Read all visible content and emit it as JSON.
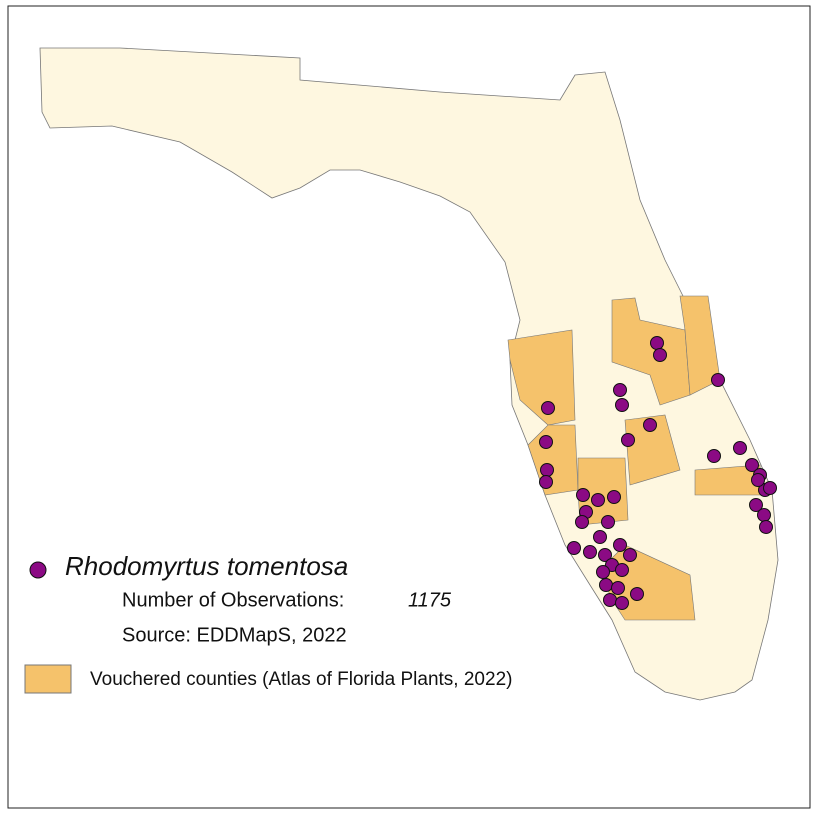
{
  "legend": {
    "species": "Rhodomyrtus tomentosa",
    "observations_label": "Number of Observations:",
    "observations_count": "1175",
    "source": "Source: EDDMapS, 2022",
    "vouchered": "Vouchered counties (Atlas of Florida Plants, 2022)"
  }
}
